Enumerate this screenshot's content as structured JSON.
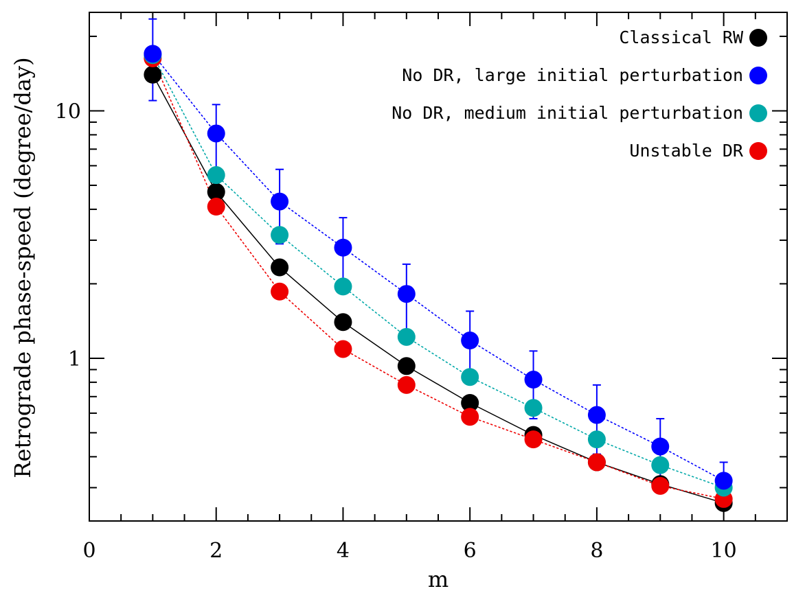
{
  "chart_data": {
    "type": "scatter",
    "xlabel": "m",
    "ylabel": "Retrograde phase-speed (degree/day)",
    "xlim": [
      0,
      11
    ],
    "ylim": [
      0.22,
      25
    ],
    "yscale": "log",
    "x_ticks": [
      0,
      2,
      4,
      6,
      8,
      10
    ],
    "x_tick_labels": [
      "0",
      "2",
      "4",
      "6",
      "8",
      "10"
    ],
    "y_ticks": [
      1,
      10
    ],
    "y_tick_labels": [
      "1",
      "10"
    ],
    "grid": false,
    "legend_position": "top-right",
    "series": [
      {
        "name": "Classical RW",
        "color": "#000000",
        "line_style": "solid",
        "x": [
          1,
          2,
          3,
          4,
          5,
          6,
          7,
          8,
          9,
          10
        ],
        "y": [
          14.0,
          4.7,
          2.33,
          1.4,
          0.93,
          0.66,
          0.49,
          0.38,
          0.31,
          0.26
        ]
      },
      {
        "name": "No DR, large initial perturbation",
        "color": "#0000ff",
        "line_style": "dotted",
        "x": [
          1,
          2,
          3,
          4,
          5,
          6,
          7,
          8,
          9,
          10
        ],
        "y": [
          17.0,
          8.1,
          4.3,
          2.8,
          1.82,
          1.18,
          0.82,
          0.59,
          0.44,
          0.32
        ],
        "error_upper": [
          23.5,
          10.6,
          5.8,
          3.7,
          2.4,
          1.55,
          1.07,
          0.78,
          0.57,
          0.38
        ],
        "error_lower": [
          11.0,
          5.6,
          2.9,
          1.9,
          1.24,
          0.81,
          0.57,
          0.41,
          0.31,
          0.26
        ]
      },
      {
        "name": "No DR, medium initial perturbation",
        "color": "#00a8a8",
        "line_style": "dotted",
        "x": [
          1,
          2,
          3,
          4,
          5,
          6,
          7,
          8,
          9,
          10
        ],
        "y": [
          16.8,
          5.5,
          3.15,
          1.95,
          1.22,
          0.84,
          0.63,
          0.47,
          0.37,
          0.3
        ]
      },
      {
        "name": "Unstable DR",
        "color": "#ee0000",
        "line_style": "dotted",
        "x": [
          1,
          2,
          3,
          4,
          5,
          6,
          7,
          8,
          9,
          10
        ],
        "y": [
          16.3,
          4.1,
          1.86,
          1.09,
          0.78,
          0.58,
          0.47,
          0.38,
          0.305,
          0.27
        ]
      }
    ]
  }
}
